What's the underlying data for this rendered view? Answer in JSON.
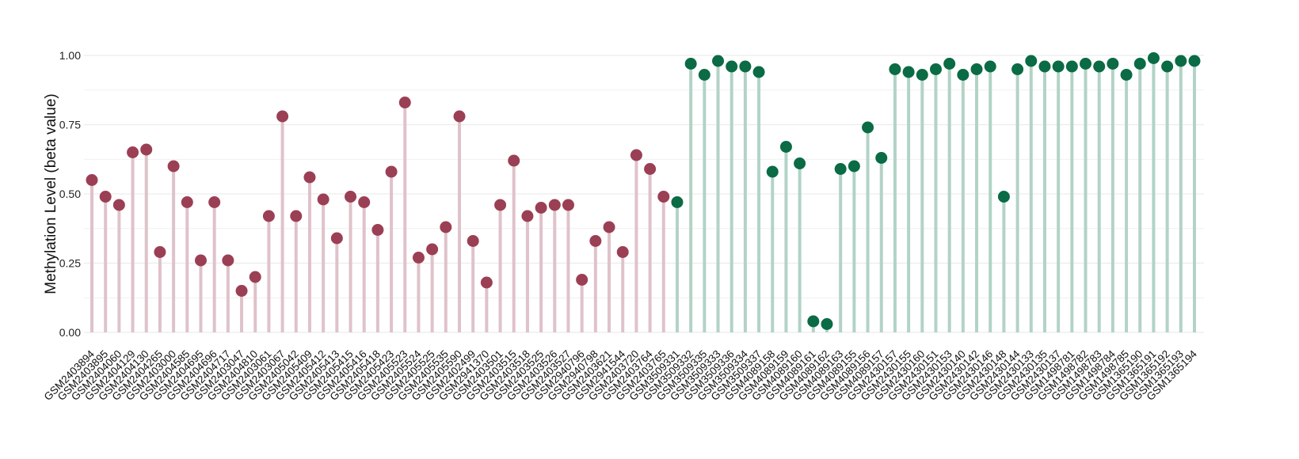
{
  "chart_data": {
    "type": "scatter",
    "subtype": "lollipop",
    "ylabel": "Methylation Level (beta value)",
    "ylim": [
      0,
      1.0
    ],
    "yticks": [
      0.0,
      0.25,
      0.5,
      0.75,
      1.0
    ],
    "ytick_labels": [
      "0.00",
      "0.25",
      "0.50",
      "0.75",
      "1.00"
    ],
    "grid": true,
    "legend": "none",
    "colors": {
      "group1_point": "#9b3f55",
      "group1_stem": "#dfc2ca",
      "group2_point": "#0a6b45",
      "group2_stem": "#b2d3c6",
      "grid": "#ececec"
    },
    "categories": [
      "GSM2403894",
      "GSM2403895",
      "GSM2404060",
      "GSM2404129",
      "GSM2404130",
      "GSM2404265",
      "GSM2403000",
      "GSM2404585",
      "GSM2404695",
      "GSM2404696",
      "GSM2404717",
      "GSM2403047",
      "GSM2404810",
      "GSM2403061",
      "GSM2403067",
      "GSM2405042",
      "GSM2405409",
      "GSM2405412",
      "GSM2405413",
      "GSM2405415",
      "GSM2405416",
      "GSM2405418",
      "GSM2405423",
      "GSM2405523",
      "GSM2405524",
      "GSM2405525",
      "GSM2405535",
      "GSM2405590",
      "GSM2402499",
      "GSM2941370",
      "GSM2403501",
      "GSM2403515",
      "GSM2403518",
      "GSM2403525",
      "GSM2403526",
      "GSM2403527",
      "GSM2940796",
      "GSM2940798",
      "GSM2403621",
      "GSM2941544",
      "GSM2403720",
      "GSM2403764",
      "GSM2403765",
      "GSM3509331",
      "GSM3509332",
      "GSM3509335",
      "GSM3509333",
      "GSM3509336",
      "GSM3509334",
      "GSM3509337",
      "GSM4089158",
      "GSM4089159",
      "GSM4089160",
      "GSM4089161",
      "GSM4089162",
      "GSM4089163",
      "GSM4089155",
      "GSM4089156",
      "GSM4089157",
      "GSM2430157",
      "GSM2430155",
      "GSM2430160",
      "GSM2430151",
      "GSM2430153",
      "GSM2430140",
      "GSM2430142",
      "GSM2430146",
      "GSM2430148",
      "GSM2430144",
      "GSM2430133",
      "GSM2430135",
      "GSM2430137",
      "GSM1498781",
      "GSM1498782",
      "GSM1498783",
      "GSM1498784",
      "GSM1498785",
      "GSM1365190",
      "GSM1365191",
      "GSM1365192",
      "GSM1365193",
      "GSM1365194"
    ],
    "series": [
      {
        "group": 1,
        "count": 43,
        "values": [
          0.55,
          0.49,
          0.46,
          0.65,
          0.66,
          0.29,
          0.6,
          0.47,
          0.26,
          0.47,
          0.26,
          0.15,
          0.2,
          0.42,
          0.78,
          0.42,
          0.56,
          0.48,
          0.34,
          0.49,
          0.47,
          0.37,
          0.58,
          0.83,
          0.27,
          0.3,
          0.38,
          0.78,
          0.33,
          0.18,
          0.46,
          0.62,
          0.42,
          0.45,
          0.46,
          0.46,
          0.19,
          0.33,
          0.38,
          0.29,
          0.64,
          0.59,
          0.49
        ]
      },
      {
        "group": 2,
        "count": 39,
        "values": [
          0.47,
          0.97,
          0.93,
          0.98,
          0.96,
          0.96,
          0.94,
          0.58,
          0.67,
          0.61,
          0.04,
          0.03,
          0.59,
          0.6,
          0.74,
          0.63,
          0.95,
          0.94,
          0.93,
          0.95,
          0.97,
          0.93,
          0.95,
          0.96,
          0.49,
          0.95,
          0.98,
          0.96,
          0.96,
          0.96,
          0.97,
          0.96,
          0.97,
          0.93,
          0.97,
          0.99,
          0.96,
          0.98,
          0.98
        ]
      }
    ]
  }
}
